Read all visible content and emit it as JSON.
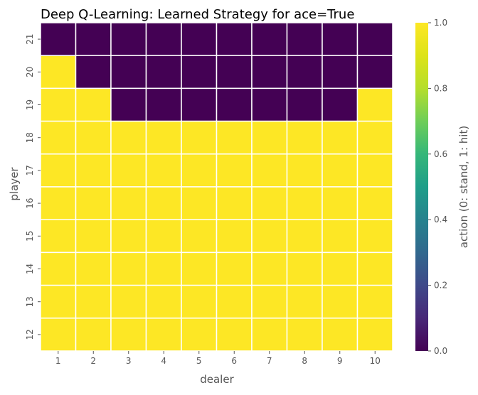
{
  "chart_data": {
    "type": "heatmap",
    "title": "Deep Q-Learning: Learned Strategy for ace=True",
    "xlabel": "dealer",
    "ylabel": "player",
    "x_categories": [
      "1",
      "2",
      "3",
      "4",
      "5",
      "6",
      "7",
      "8",
      "9",
      "10"
    ],
    "y_categories": [
      "21",
      "20",
      "19",
      "18",
      "17",
      "16",
      "15",
      "14",
      "13",
      "12"
    ],
    "values": [
      [
        0,
        0,
        0,
        0,
        0,
        0,
        0,
        0,
        0,
        0
      ],
      [
        1,
        0,
        0,
        0,
        0,
        0,
        0,
        0,
        0,
        0
      ],
      [
        1,
        1,
        0,
        0,
        0,
        0,
        0,
        0,
        0,
        1
      ],
      [
        1,
        1,
        1,
        1,
        1,
        1,
        1,
        1,
        1,
        1
      ],
      [
        1,
        1,
        1,
        1,
        1,
        1,
        1,
        1,
        1,
        1
      ],
      [
        1,
        1,
        1,
        1,
        1,
        1,
        1,
        1,
        1,
        1
      ],
      [
        1,
        1,
        1,
        1,
        1,
        1,
        1,
        1,
        1,
        1
      ],
      [
        1,
        1,
        1,
        1,
        1,
        1,
        1,
        1,
        1,
        1
      ],
      [
        1,
        1,
        1,
        1,
        1,
        1,
        1,
        1,
        1,
        1
      ],
      [
        1,
        1,
        1,
        1,
        1,
        1,
        1,
        1,
        1,
        1
      ]
    ],
    "colorbar": {
      "label": "action (0: stand, 1: hit)",
      "range": [
        0.0,
        1.0
      ],
      "ticks": [
        "0.0",
        "0.2",
        "0.4",
        "0.6",
        "0.8",
        "1.0"
      ],
      "colormap": "viridis"
    },
    "grid": false
  },
  "colors": {
    "low": "#440154",
    "high": "#fde725",
    "cell_border": "#ffffff",
    "text": "#555555",
    "title_text": "#000000"
  }
}
